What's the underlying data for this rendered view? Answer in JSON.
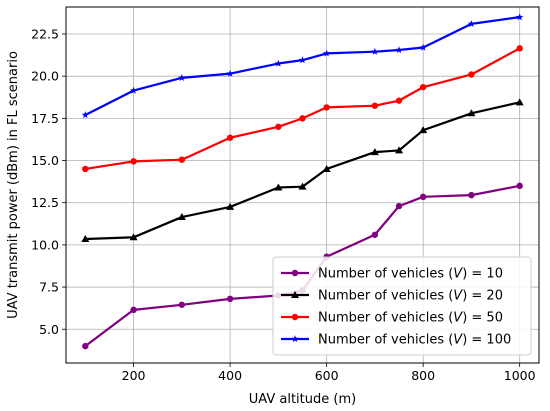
{
  "chart_data": {
    "type": "line",
    "xlabel": "UAV altitude (m)",
    "ylabel": "UAV transmit power (dBm) in FL scenario",
    "xlim": [
      60,
      1040
    ],
    "ylim": [
      3.0,
      24.1
    ],
    "xticks": [
      200,
      400,
      600,
      800,
      1000
    ],
    "xtick_labels": [
      "200",
      "400",
      "600",
      "800",
      "1000"
    ],
    "yticks": [
      5.0,
      7.5,
      10.0,
      12.5,
      15.0,
      17.5,
      20.0,
      22.5
    ],
    "ytick_labels": [
      "5.0",
      "7.5",
      "10.0",
      "12.5",
      "15.0",
      "17.5",
      "20.0",
      "22.5"
    ],
    "grid": true,
    "legend_position": "lower-right",
    "x": [
      100,
      200,
      300,
      400,
      500,
      550,
      600,
      700,
      750,
      800,
      900,
      1000
    ],
    "series": [
      {
        "name_prefix": "Number of vehicles (",
        "name_symbol": "V",
        "name_suffix": ") = 10",
        "color": "#800080",
        "marker": "circle",
        "values": [
          4.0,
          6.15,
          6.45,
          6.8,
          7.0,
          7.3,
          9.3,
          10.6,
          12.3,
          12.85,
          12.95,
          13.5
        ]
      },
      {
        "name_prefix": "Number of vehicles (",
        "name_symbol": "V",
        "name_suffix": ") = 20",
        "color": "#000000",
        "marker": "triangle",
        "values": [
          10.35,
          10.45,
          11.65,
          12.25,
          13.4,
          13.45,
          14.5,
          15.5,
          15.6,
          16.8,
          17.8,
          18.45
        ]
      },
      {
        "name_prefix": "Number of vehicles (",
        "name_symbol": "V",
        "name_suffix": ") = 50",
        "color": "#ff0000",
        "marker": "circle",
        "values": [
          14.5,
          14.95,
          15.05,
          16.35,
          17.0,
          17.5,
          18.15,
          18.25,
          18.55,
          19.35,
          20.1,
          21.65
        ]
      },
      {
        "name_prefix": "Number of vehicles (",
        "name_symbol": "V",
        "name_suffix": ") = 100",
        "color": "#0000ff",
        "marker": "star",
        "values": [
          17.7,
          19.15,
          19.9,
          20.15,
          20.75,
          20.95,
          21.35,
          21.45,
          21.55,
          21.7,
          23.1,
          23.5
        ]
      }
    ]
  }
}
